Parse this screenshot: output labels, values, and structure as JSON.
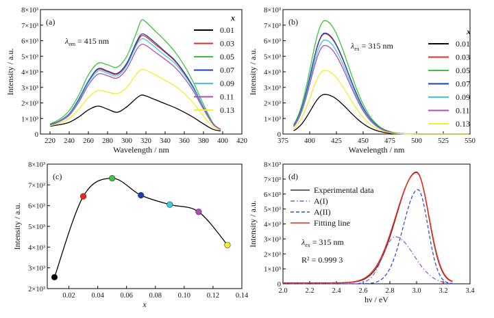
{
  "colors": {
    "0.01": "#000000",
    "0.03": "#e8281e",
    "0.05": "#3cc23c",
    "0.07": "#1c3fb0",
    "0.09": "#3ccbe0",
    "0.11": "#b04ab8",
    "0.13": "#f2ee2a",
    "experimental": "#333333",
    "A_I": "#9b4fc2",
    "A_II": "#2a4fd6",
    "fitting": "#e8281e"
  },
  "chart_data": [
    {
      "type": "line",
      "panel_label": "(a)",
      "annotation": {
        "symbol": "λ",
        "subscript": "em",
        "text": " = 415 nm"
      },
      "xlabel": "Wavelength / nm",
      "ylabel": "Intensity / a.u.",
      "xlim": [
        210,
        420
      ],
      "ylim": [
        0,
        8000
      ],
      "x_ticks": [
        "220",
        "240",
        "260",
        "280",
        "300",
        "320",
        "340",
        "360",
        "380",
        "400",
        "420"
      ],
      "y_ticks": [
        "0",
        "1×10³",
        "2×10³",
        "3×10³",
        "4×10³",
        "5×10³",
        "6×10³",
        "7×10³",
        "8×10³"
      ],
      "legend_title": "x",
      "legend_position": "right",
      "x": [
        220,
        230,
        240,
        250,
        260,
        270,
        280,
        290,
        300,
        310,
        315,
        320,
        330,
        340,
        350,
        360,
        370,
        380,
        390,
        398
      ],
      "series": [
        {
          "name": "0.01",
          "values": [
            500,
            600,
            750,
            1100,
            1550,
            1800,
            1600,
            1400,
            1750,
            2300,
            2500,
            2450,
            2200,
            1950,
            1700,
            1400,
            1050,
            650,
            300,
            200
          ]
        },
        {
          "name": "0.03",
          "values": [
            600,
            850,
            1300,
            2200,
            3400,
            4150,
            4000,
            3850,
            4500,
            5800,
            6300,
            6250,
            5750,
            5250,
            4700,
            3900,
            2900,
            1700,
            650,
            300
          ]
        },
        {
          "name": "0.05",
          "values": [
            650,
            950,
            1500,
            2500,
            3800,
            4550,
            4450,
            4300,
            5000,
            6500,
            7300,
            7200,
            6600,
            6000,
            5300,
            4400,
            3250,
            1900,
            700,
            300
          ]
        },
        {
          "name": "0.07",
          "values": [
            600,
            850,
            1300,
            2250,
            3400,
            4200,
            4050,
            3900,
            4550,
            5900,
            6400,
            6350,
            5850,
            5300,
            4750,
            3950,
            2950,
            1700,
            650,
            300
          ]
        },
        {
          "name": "0.09",
          "values": [
            580,
            820,
            1250,
            2150,
            3300,
            4050,
            3900,
            3750,
            4400,
            5700,
            6100,
            6050,
            5550,
            5050,
            4550,
            3800,
            2850,
            1650,
            640,
            300
          ]
        },
        {
          "name": "0.11",
          "values": [
            560,
            800,
            1200,
            2050,
            3150,
            3850,
            3750,
            3600,
            4200,
            5400,
            5750,
            5700,
            5250,
            4800,
            4300,
            3600,
            2700,
            1600,
            620,
            300
          ]
        },
        {
          "name": "0.13",
          "values": [
            530,
            700,
            1000,
            1600,
            2350,
            2800,
            2700,
            2600,
            3000,
            3850,
            4150,
            4100,
            3800,
            3450,
            3100,
            2600,
            1950,
            1150,
            450,
            250
          ]
        }
      ]
    },
    {
      "type": "line",
      "panel_label": "(b)",
      "annotation": {
        "symbol": "λ",
        "subscript": "ex",
        "text": " = 315 nm"
      },
      "xlabel": "Wavelength / nm",
      "ylabel": "Intensity / a.u.",
      "xlim": [
        375,
        550
      ],
      "ylim": [
        0,
        8000
      ],
      "x_ticks": [
        "375",
        "400",
        "425",
        "450",
        "475",
        "500",
        "525",
        "550"
      ],
      "y_ticks": [
        "0",
        "1×10³",
        "2×10³",
        "3×10³",
        "4×10³",
        "5×10³",
        "6×10³",
        "7×10³",
        "8×10³"
      ],
      "legend_title": "x",
      "legend_position": "right",
      "peak_center": 414,
      "series": [
        {
          "name": "0.01",
          "peak": 2550
        },
        {
          "name": "0.03",
          "peak": 6450
        },
        {
          "name": "0.05",
          "peak": 7300
        },
        {
          "name": "0.07",
          "peak": 6500
        },
        {
          "name": "0.09",
          "peak": 6050
        },
        {
          "name": "0.11",
          "peak": 5700
        },
        {
          "name": "0.13",
          "peak": 4100
        }
      ]
    },
    {
      "type": "scatter",
      "panel_label": "(c)",
      "xlabel": "x",
      "ylabel": "Intensity / a.u.",
      "xlim": [
        0.005,
        0.14
      ],
      "ylim": [
        2000,
        8000
      ],
      "x_ticks": [
        "0.02",
        "0.04",
        "0.06",
        "0.08",
        "0.10",
        "0.12",
        "0.14"
      ],
      "y_ticks": [
        "2×10³",
        "3×10³",
        "4×10³",
        "5×10³",
        "6×10³",
        "7×10³",
        "8×10³"
      ],
      "x": [
        0.01,
        0.03,
        0.05,
        0.07,
        0.09,
        0.11,
        0.13
      ],
      "values": [
        2550,
        6450,
        7320,
        6500,
        6050,
        5700,
        4100
      ]
    },
    {
      "type": "line",
      "panel_label": "(d)",
      "annotation": {
        "symbol": "λ",
        "subscript": "ex",
        "text": " = 315 nm"
      },
      "annotation2": "R² = 0.999 3",
      "xlabel": "hν / eV",
      "ylabel": "Intensity / a.u.",
      "xlim": [
        2.0,
        3.4
      ],
      "ylim": [
        0,
        8000
      ],
      "x_ticks": [
        "2.0",
        "2.2",
        "2.4",
        "2.6",
        "2.8",
        "3.0",
        "3.2",
        "3.4"
      ],
      "y_ticks": [
        "0",
        "1×10³",
        "2×10³",
        "3×10³",
        "4×10³",
        "5×10³",
        "6×10³",
        "7×10³",
        "8×10³"
      ],
      "legend_position": "top-left",
      "series": [
        {
          "name": "Experimental data",
          "peak": 7420,
          "center": 3.0
        },
        {
          "name": "A(I)",
          "peak": 3150,
          "center": 2.84
        },
        {
          "name": "A(II)",
          "peak": 6300,
          "center": 3.01
        },
        {
          "name": "Fitting line",
          "peak": 7380,
          "center": 3.0
        }
      ]
    }
  ]
}
